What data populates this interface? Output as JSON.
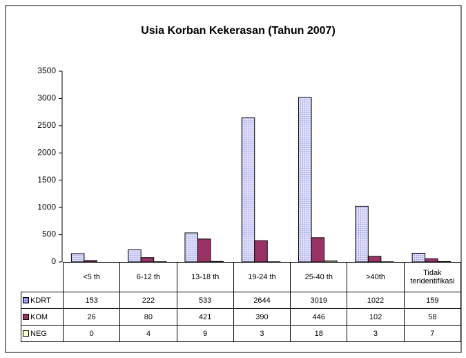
{
  "chart_data": {
    "type": "bar",
    "title": "Usia Korban Kekerasan (Tahun 2007)",
    "categories": [
      "<5 th",
      "6-12 th",
      "13-18 th",
      "19-24 th",
      "25-40 th",
      ">40th",
      "Tidak teridentifikasi"
    ],
    "series": [
      {
        "name": "KDRT",
        "color": "#ccccff",
        "values": [
          153,
          222,
          533,
          2644,
          3019,
          1022,
          159
        ]
      },
      {
        "name": "KOM",
        "color": "#993366",
        "values": [
          26,
          80,
          421,
          390,
          446,
          102,
          58
        ]
      },
      {
        "name": "NEG",
        "color": "#ffffcc",
        "values": [
          0,
          4,
          9,
          3,
          18,
          3,
          7
        ]
      }
    ],
    "ylim": [
      0,
      3500
    ],
    "yticks": [
      0,
      500,
      1000,
      1500,
      2000,
      2500,
      3000,
      3500
    ],
    "grid": false
  }
}
